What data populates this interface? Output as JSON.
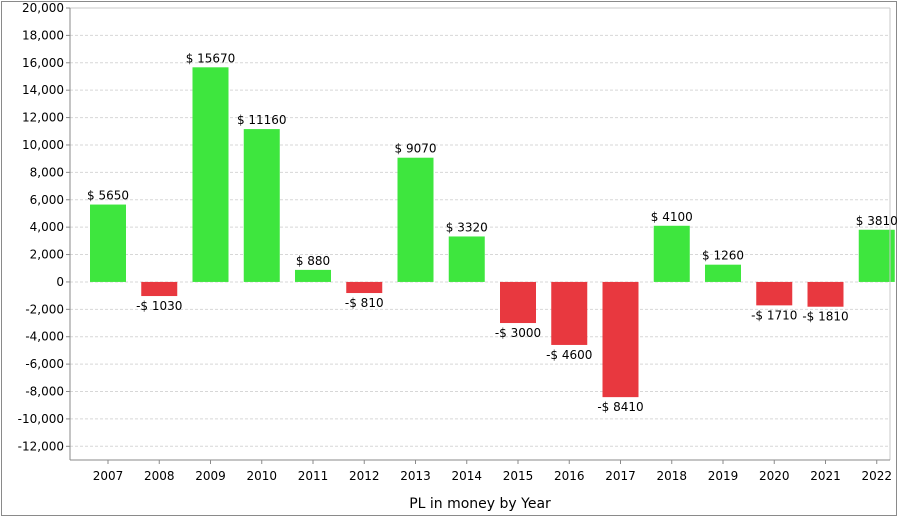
{
  "chart_data": {
    "type": "bar",
    "xlabel": "PL in money by Year",
    "ylabel": "",
    "ylim": [
      -13000,
      20000
    ],
    "y_ticks": [
      20000,
      18000,
      16000,
      14000,
      12000,
      10000,
      8000,
      6000,
      4000,
      2000,
      0,
      -2000,
      -4000,
      -6000,
      -8000,
      -10000,
      -12000
    ],
    "y_tick_labels": [
      "20,000",
      "18,000",
      "16,000",
      "14,000",
      "12,000",
      "10,000",
      "8,000",
      "6,000",
      "4,000",
      "2,000",
      "0",
      "-2,000",
      "-4,000",
      "-6,000",
      "-8,000",
      "-10,000",
      "-12,000"
    ],
    "grid": true,
    "categories": [
      "2007",
      "2008",
      "2009",
      "2010",
      "2011",
      "2012",
      "2013",
      "2014",
      "2015",
      "2016",
      "2017",
      "2018",
      "2019",
      "2020",
      "2021",
      "2022"
    ],
    "values": [
      5650,
      -1030,
      15670,
      11160,
      880,
      -810,
      9070,
      3320,
      -3000,
      -4600,
      -8410,
      4100,
      1260,
      -1710,
      -1810,
      3810
    ],
    "data_labels": [
      "$ 5650",
      "-$ 1030",
      "$ 15670",
      "$ 11160",
      "$ 880",
      "-$ 810",
      "$ 9070",
      "$ 3320",
      "-$ 3000",
      "-$ 4600",
      "-$ 8410",
      "$ 4100",
      "$ 1260",
      "-$ 1710",
      "-$ 1810",
      "$ 3810"
    ],
    "colors": {
      "positive": "#3ee63e",
      "negative": "#e8383f",
      "grid": "#d7d7d7",
      "axis": "#8a8a8a"
    }
  }
}
